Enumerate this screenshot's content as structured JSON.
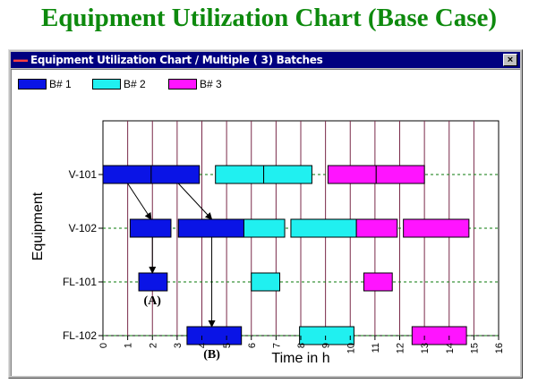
{
  "page_title": "Equipment Utilization Chart (Base Case)",
  "window": {
    "title": "Equipment Utilization Chart / Multiple ( 3) Batches",
    "close_glyph": "×"
  },
  "legend": [
    {
      "label": "B# 1",
      "color": "#0a14e6"
    },
    {
      "label": "B# 2",
      "color": "#20f0f0"
    },
    {
      "label": "B# 3",
      "color": "#ff14ff"
    }
  ],
  "chart_data": {
    "type": "gantt",
    "title": "",
    "xlabel": "Time in h",
    "ylabel": "Equipment",
    "xlim": [
      0,
      16
    ],
    "x_ticks": [
      "0",
      "1",
      "2",
      "3",
      "4",
      "5",
      "6",
      "7",
      "8",
      "9",
      "10",
      "11",
      "12",
      "13",
      "14",
      "15",
      "16"
    ],
    "categories": [
      "V-101",
      "V-102",
      "FL-101",
      "FL-102"
    ],
    "series_colors": {
      "B# 1": "#0a14e6",
      "B# 2": "#20f0f0",
      "B# 3": "#ff14ff"
    },
    "tasks": [
      {
        "equipment": "V-101",
        "batch": "B# 1",
        "start": 0,
        "end": 1.95
      },
      {
        "equipment": "V-101",
        "batch": "B# 1",
        "start": 1.95,
        "end": 3.9
      },
      {
        "equipment": "V-101",
        "batch": "B# 2",
        "start": 4.55,
        "end": 6.5
      },
      {
        "equipment": "V-101",
        "batch": "B# 2",
        "start": 6.5,
        "end": 8.45
      },
      {
        "equipment": "V-101",
        "batch": "B# 3",
        "start": 9.1,
        "end": 11.05
      },
      {
        "equipment": "V-101",
        "batch": "B# 3",
        "start": 11.05,
        "end": 13.0
      },
      {
        "equipment": "V-102",
        "batch": "B# 1",
        "start": 1.1,
        "end": 2.75
      },
      {
        "equipment": "V-102",
        "batch": "B# 1",
        "start": 3.05,
        "end": 5.7
      },
      {
        "equipment": "V-102",
        "batch": "B# 2",
        "start": 5.7,
        "end": 7.35
      },
      {
        "equipment": "V-102",
        "batch": "B# 2",
        "start": 7.6,
        "end": 10.25
      },
      {
        "equipment": "V-102",
        "batch": "B# 3",
        "start": 10.25,
        "end": 11.9
      },
      {
        "equipment": "V-102",
        "batch": "B# 3",
        "start": 12.15,
        "end": 14.8
      },
      {
        "equipment": "FL-101",
        "batch": "B# 1",
        "start": 1.45,
        "end": 2.6
      },
      {
        "equipment": "FL-101",
        "batch": "B# 2",
        "start": 6.0,
        "end": 7.15
      },
      {
        "equipment": "FL-101",
        "batch": "B# 3",
        "start": 10.55,
        "end": 11.7
      },
      {
        "equipment": "FL-102",
        "batch": "B# 1",
        "start": 3.4,
        "end": 5.6
      },
      {
        "equipment": "FL-102",
        "batch": "B# 2",
        "start": 7.95,
        "end": 10.15
      },
      {
        "equipment": "FL-102",
        "batch": "B# 3",
        "start": 12.5,
        "end": 14.7
      }
    ],
    "transfer_arrows": [
      {
        "from_equipment": "V-101",
        "from_time": 1.0,
        "to_equipment": "V-102",
        "to_time": 1.95
      },
      {
        "from_equipment": "V-101",
        "from_time": 3.05,
        "to_equipment": "V-102",
        "to_time": 4.4
      },
      {
        "from_equipment": "V-102",
        "from_time": 2.0,
        "to_equipment": "FL-101",
        "to_time": 2.0
      },
      {
        "from_equipment": "V-102",
        "from_time": 4.4,
        "to_equipment": "FL-102",
        "to_time": 4.4
      }
    ],
    "annotations": [
      {
        "text": "(A)",
        "equipment": "FL-101",
        "time": 2.0
      },
      {
        "text": "(B)",
        "equipment": "FL-102",
        "time": 4.4
      }
    ]
  }
}
